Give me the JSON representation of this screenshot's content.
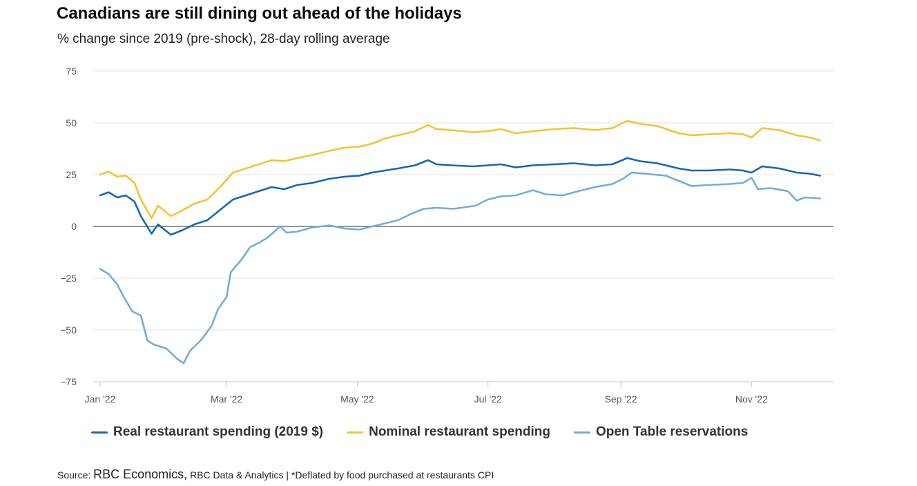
{
  "header": {
    "title": "Canadians are still dining out ahead of the holidays",
    "subtitle": "% change since 2019 (pre-shock), 28-day rolling average"
  },
  "source": {
    "label": "Source:",
    "org": "RBC Economics,",
    "rest": "RBC Data & Analytics | *Deflated by food purchased at restaurants CPI"
  },
  "colors": {
    "real": "#1467b3",
    "nominal": "#f6c32e",
    "opentable": "#72acdc",
    "grid": "#e3e3e3",
    "zero_line": "#555555"
  },
  "chart_data": {
    "type": "line",
    "title": "Canadians are still dining out ahead of the holidays",
    "subtitle": "% change since 2019 (pre-shock), 28-day rolling average",
    "xlabel": "",
    "ylabel": "",
    "ylim": [
      -75,
      75
    ],
    "yticks": [
      75,
      50,
      25,
      0,
      -25,
      -50,
      -75
    ],
    "ytick_labels": [
      "75",
      "50",
      "25",
      "0",
      "−25",
      "−50",
      "−75"
    ],
    "xlim": [
      "2022-01-01",
      "2022-12-20"
    ],
    "xticks": [
      {
        "date": "2022-01-01",
        "label": "Jan '22"
      },
      {
        "date": "2022-03-01",
        "label": "Mar '22"
      },
      {
        "date": "2022-05-01",
        "label": "May '22"
      },
      {
        "date": "2022-07-01",
        "label": "Jul '22"
      },
      {
        "date": "2022-09-01",
        "label": "Sep '22"
      },
      {
        "date": "2022-11-01",
        "label": "Nov '22"
      }
    ],
    "grid": true,
    "legend_position": "bottom",
    "series": [
      {
        "name": "Real restaurant spending (2019 $)",
        "color_key": "real",
        "points": [
          [
            "2022-01-01",
            15
          ],
          [
            "2022-01-05",
            16.5
          ],
          [
            "2022-01-09",
            14
          ],
          [
            "2022-01-13",
            15
          ],
          [
            "2022-01-17",
            12
          ],
          [
            "2022-01-20",
            5
          ],
          [
            "2022-01-25",
            -3.5
          ],
          [
            "2022-01-28",
            1
          ],
          [
            "2022-02-03",
            -4
          ],
          [
            "2022-02-08",
            -2
          ],
          [
            "2022-02-14",
            1
          ],
          [
            "2022-02-20",
            3
          ],
          [
            "2022-02-26",
            8
          ],
          [
            "2022-03-04",
            13
          ],
          [
            "2022-03-10",
            15
          ],
          [
            "2022-03-16",
            17
          ],
          [
            "2022-03-22",
            19
          ],
          [
            "2022-03-28",
            18
          ],
          [
            "2022-04-03",
            20
          ],
          [
            "2022-04-10",
            21
          ],
          [
            "2022-04-18",
            23
          ],
          [
            "2022-04-25",
            24
          ],
          [
            "2022-05-02",
            24.5
          ],
          [
            "2022-05-08",
            26
          ],
          [
            "2022-05-14",
            27
          ],
          [
            "2022-05-20",
            28
          ],
          [
            "2022-05-28",
            29.5
          ],
          [
            "2022-06-03",
            32
          ],
          [
            "2022-06-07",
            30
          ],
          [
            "2022-06-14",
            29.5
          ],
          [
            "2022-06-24",
            29
          ],
          [
            "2022-07-01",
            29.5
          ],
          [
            "2022-07-07",
            30
          ],
          [
            "2022-07-14",
            28.5
          ],
          [
            "2022-07-22",
            29.5
          ],
          [
            "2022-08-01",
            30
          ],
          [
            "2022-08-10",
            30.5
          ],
          [
            "2022-08-20",
            29.5
          ],
          [
            "2022-08-28",
            30
          ],
          [
            "2022-09-04",
            33
          ],
          [
            "2022-09-10",
            31.5
          ],
          [
            "2022-09-18",
            30.5
          ],
          [
            "2022-09-28",
            28
          ],
          [
            "2022-10-04",
            27
          ],
          [
            "2022-10-12",
            27
          ],
          [
            "2022-10-22",
            27.5
          ],
          [
            "2022-10-28",
            27
          ],
          [
            "2022-11-01",
            26
          ],
          [
            "2022-11-06",
            29
          ],
          [
            "2022-11-14",
            28
          ],
          [
            "2022-11-22",
            26
          ],
          [
            "2022-11-28",
            25.5
          ],
          [
            "2022-12-03",
            24.5
          ]
        ]
      },
      {
        "name": "Nominal restaurant spending",
        "color_key": "nominal",
        "points": [
          [
            "2022-01-01",
            25
          ],
          [
            "2022-01-05",
            26.5
          ],
          [
            "2022-01-09",
            24
          ],
          [
            "2022-01-13",
            24.5
          ],
          [
            "2022-01-17",
            21
          ],
          [
            "2022-01-20",
            13
          ],
          [
            "2022-01-25",
            4
          ],
          [
            "2022-01-28",
            10
          ],
          [
            "2022-02-03",
            5
          ],
          [
            "2022-02-08",
            7.5
          ],
          [
            "2022-02-14",
            11
          ],
          [
            "2022-02-20",
            13
          ],
          [
            "2022-02-26",
            19
          ],
          [
            "2022-03-04",
            26
          ],
          [
            "2022-03-10",
            28
          ],
          [
            "2022-03-16",
            30
          ],
          [
            "2022-03-22",
            32
          ],
          [
            "2022-03-28",
            31.5
          ],
          [
            "2022-04-03",
            33
          ],
          [
            "2022-04-10",
            34.5
          ],
          [
            "2022-04-18",
            36.5
          ],
          [
            "2022-04-25",
            38
          ],
          [
            "2022-05-02",
            38.5
          ],
          [
            "2022-05-08",
            40
          ],
          [
            "2022-05-14",
            42.5
          ],
          [
            "2022-05-20",
            44
          ],
          [
            "2022-05-28",
            46
          ],
          [
            "2022-06-03",
            49
          ],
          [
            "2022-06-07",
            47
          ],
          [
            "2022-06-14",
            46.5
          ],
          [
            "2022-06-24",
            45.5
          ],
          [
            "2022-07-01",
            46
          ],
          [
            "2022-07-07",
            47
          ],
          [
            "2022-07-14",
            45
          ],
          [
            "2022-07-22",
            46
          ],
          [
            "2022-08-01",
            47
          ],
          [
            "2022-08-10",
            47.5
          ],
          [
            "2022-08-20",
            46.5
          ],
          [
            "2022-08-28",
            47.5
          ],
          [
            "2022-09-04",
            51
          ],
          [
            "2022-09-10",
            49.5
          ],
          [
            "2022-09-18",
            48.5
          ],
          [
            "2022-09-28",
            45
          ],
          [
            "2022-10-04",
            44
          ],
          [
            "2022-10-12",
            44.5
          ],
          [
            "2022-10-22",
            45
          ],
          [
            "2022-10-28",
            44.5
          ],
          [
            "2022-11-01",
            43
          ],
          [
            "2022-11-06",
            47.5
          ],
          [
            "2022-11-14",
            46.5
          ],
          [
            "2022-11-22",
            44
          ],
          [
            "2022-11-28",
            43
          ],
          [
            "2022-12-03",
            41.5
          ]
        ]
      },
      {
        "name": "Open Table reservations",
        "color_key": "opentable",
        "points": [
          [
            "2022-01-01",
            -20.5
          ],
          [
            "2022-01-05",
            -23
          ],
          [
            "2022-01-09",
            -28
          ],
          [
            "2022-01-12",
            -34
          ],
          [
            "2022-01-16",
            -41
          ],
          [
            "2022-01-20",
            -43
          ],
          [
            "2022-01-23",
            -55
          ],
          [
            "2022-01-26",
            -57
          ],
          [
            "2022-02-01",
            -59
          ],
          [
            "2022-02-06",
            -64
          ],
          [
            "2022-02-09",
            -66
          ],
          [
            "2022-02-12",
            -60
          ],
          [
            "2022-02-17",
            -55
          ],
          [
            "2022-02-22",
            -48
          ],
          [
            "2022-02-25",
            -40
          ],
          [
            "2022-03-01",
            -34
          ],
          [
            "2022-03-03",
            -22
          ],
          [
            "2022-03-08",
            -16
          ],
          [
            "2022-03-12",
            -10
          ],
          [
            "2022-03-16",
            -8
          ],
          [
            "2022-03-20",
            -5.5
          ],
          [
            "2022-03-26",
            0
          ],
          [
            "2022-03-29",
            -3
          ],
          [
            "2022-04-03",
            -2.5
          ],
          [
            "2022-04-10",
            -0.5
          ],
          [
            "2022-04-18",
            0.5
          ],
          [
            "2022-04-25",
            -1
          ],
          [
            "2022-05-02",
            -1.5
          ],
          [
            "2022-05-08",
            0
          ],
          [
            "2022-05-14",
            1.5
          ],
          [
            "2022-05-20",
            3
          ],
          [
            "2022-05-26",
            6
          ],
          [
            "2022-06-01",
            8.5
          ],
          [
            "2022-06-07",
            9
          ],
          [
            "2022-06-15",
            8.5
          ],
          [
            "2022-06-25",
            10
          ],
          [
            "2022-07-01",
            13
          ],
          [
            "2022-07-07",
            14.5
          ],
          [
            "2022-07-14",
            15
          ],
          [
            "2022-07-22",
            17.5
          ],
          [
            "2022-07-28",
            15.5
          ],
          [
            "2022-08-05",
            15
          ],
          [
            "2022-08-12",
            17
          ],
          [
            "2022-08-20",
            19
          ],
          [
            "2022-08-28",
            20.5
          ],
          [
            "2022-09-02",
            23
          ],
          [
            "2022-09-06",
            26
          ],
          [
            "2022-09-12",
            25.5
          ],
          [
            "2022-09-22",
            24.5
          ],
          [
            "2022-09-28",
            22
          ],
          [
            "2022-10-04",
            19.5
          ],
          [
            "2022-10-12",
            20
          ],
          [
            "2022-10-22",
            20.5
          ],
          [
            "2022-10-28",
            21
          ],
          [
            "2022-11-01",
            23.5
          ],
          [
            "2022-11-04",
            18
          ],
          [
            "2022-11-10",
            18.5
          ],
          [
            "2022-11-18",
            17
          ],
          [
            "2022-11-22",
            12.5
          ],
          [
            "2022-11-26",
            14
          ],
          [
            "2022-12-03",
            13.5
          ]
        ]
      }
    ]
  }
}
